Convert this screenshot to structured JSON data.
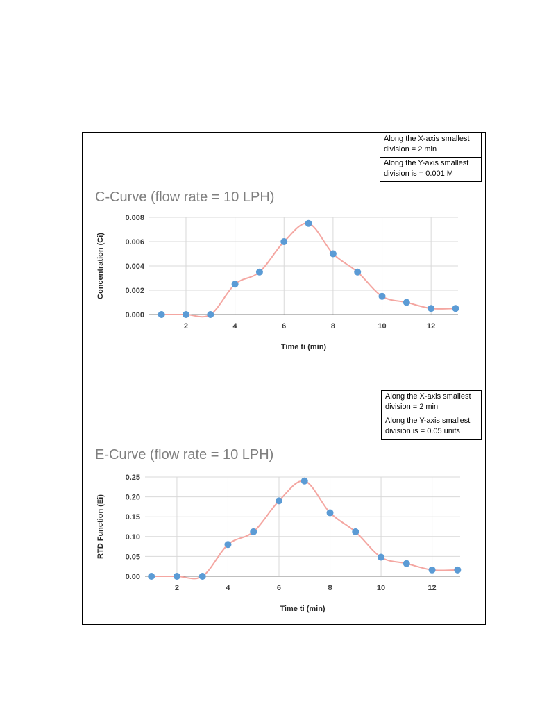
{
  "charts": [
    {
      "notes": [
        "Along the X-axis smallest\ndivision = 2 min",
        "Along the Y-axis smallest\ndivision is =  0.001 M"
      ]
    },
    {
      "notes": [
        "Along the X-axis smallest\ndivision = 2 min",
        "Along the Y-axis smallest\ndivision is =  0.05 units"
      ]
    }
  ],
  "chart_data": [
    {
      "type": "scatter",
      "title": "C-Curve (flow rate = 10 LPH)",
      "xlabel": "Time ti (min)",
      "ylabel": "Concentration (Ci)",
      "xlim": [
        1,
        13
      ],
      "ylim": [
        0,
        0.008
      ],
      "xticks": [
        "2",
        "4",
        "6",
        "8",
        "10",
        "12"
      ],
      "yticks": [
        "0.000",
        "0.002",
        "0.004",
        "0.006",
        "0.008"
      ],
      "grid": true,
      "series": [
        {
          "color": "#5b9bd5",
          "x": [
            1,
            2,
            3,
            4,
            5,
            6,
            7,
            8,
            9,
            10,
            11,
            12,
            13
          ],
          "y": [
            0.0,
            0.0,
            0.0,
            0.0025,
            0.0035,
            0.006,
            0.0075,
            0.005,
            0.0035,
            0.0015,
            0.001,
            0.0005,
            0.0005
          ]
        }
      ],
      "trendline": {
        "type": "smooth",
        "color": "#f4a6a1"
      }
    },
    {
      "type": "scatter",
      "title": "E-Curve (flow rate = 10 LPH)",
      "xlabel": "Time ti (min)",
      "ylabel": "RTD Function (Ei)",
      "xlim": [
        1,
        13
      ],
      "ylim": [
        0,
        0.25
      ],
      "xticks": [
        "2",
        "4",
        "6",
        "8",
        "10",
        "12"
      ],
      "yticks": [
        "0.00",
        "0.05",
        "0.10",
        "0.15",
        "0.20",
        "0.25"
      ],
      "grid": true,
      "series": [
        {
          "color": "#5b9bd5",
          "x": [
            1,
            2,
            3,
            4,
            5,
            6,
            7,
            8,
            9,
            10,
            11,
            12,
            13
          ],
          "y": [
            0.0,
            0.0,
            0.0,
            0.08,
            0.112,
            0.19,
            0.24,
            0.16,
            0.112,
            0.048,
            0.032,
            0.016,
            0.016
          ]
        }
      ],
      "trendline": {
        "type": "smooth",
        "color": "#f4a6a1"
      }
    }
  ]
}
